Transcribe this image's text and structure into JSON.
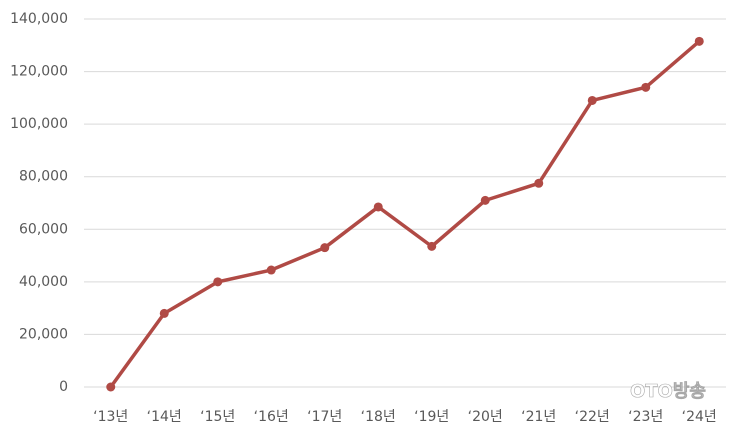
{
  "chart_data": {
    "type": "line",
    "categories": [
      "‘13년",
      "‘14년",
      "‘15년",
      "‘16년",
      "‘17년",
      "‘18년",
      "‘19년",
      "‘20년",
      "‘21년",
      "‘22년",
      "‘23년",
      "‘24년"
    ],
    "series": [
      {
        "color": "#b04a45",
        "values": [
          0,
          28000,
          40000,
          44500,
          53000,
          68500,
          53500,
          71000,
          77500,
          109000,
          114000,
          131500
        ]
      }
    ],
    "ylim": [
      0,
      140000
    ],
    "yticks": [
      0,
      {
        "value": 20000,
        "label": "20,000"
      },
      {
        "value": 40000,
        "label": "40,000"
      },
      {
        "value": 60000,
        "label": "60,000"
      },
      {
        "value": 80000,
        "label": "80,000"
      },
      {
        "value": 100000,
        "label": "100,000"
      },
      {
        "value": 120000,
        "label": "120,000"
      },
      {
        "value": 140000,
        "label": "140,000"
      }
    ],
    "grid": true
  },
  "watermark": "OTO방송"
}
